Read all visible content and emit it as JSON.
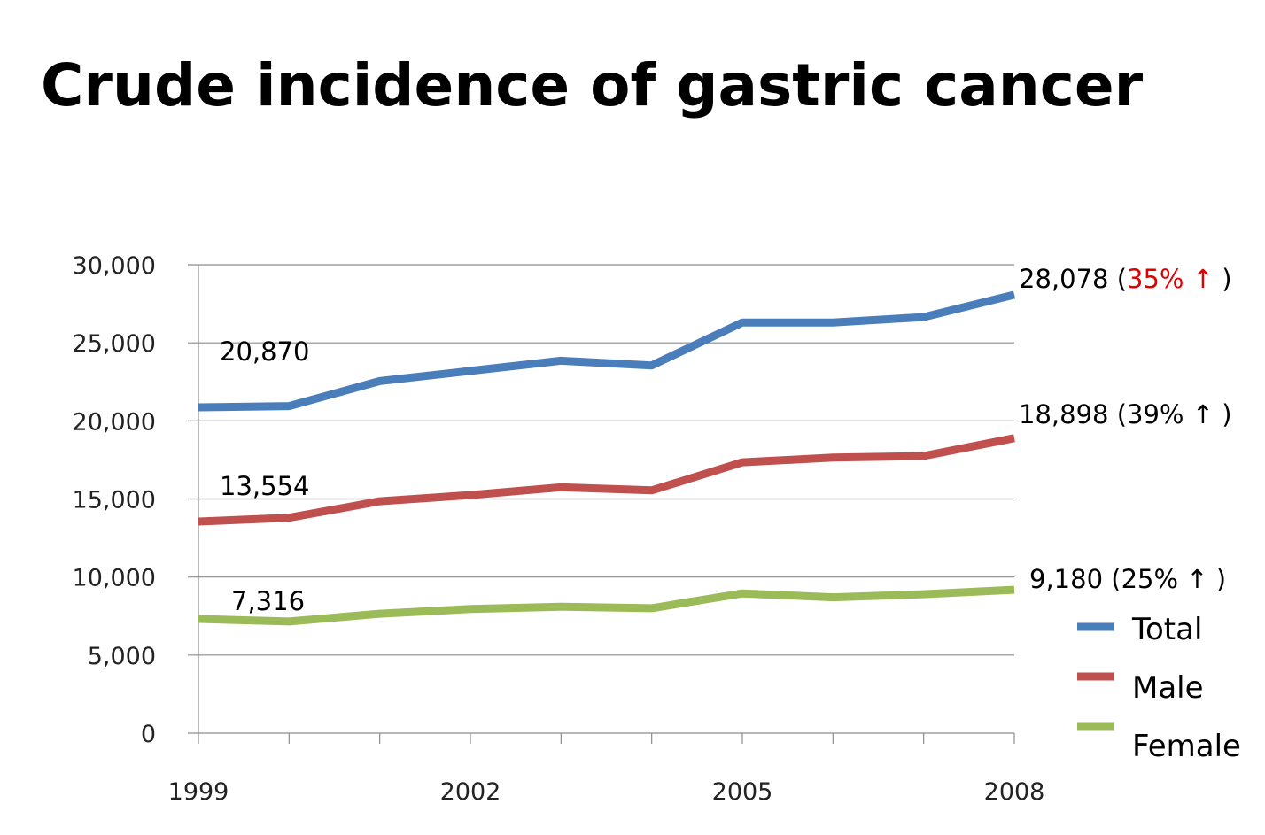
{
  "title": "Crude incidence of gastric cancer",
  "chart_data": {
    "type": "line",
    "x": [
      1999,
      2000,
      2001,
      2002,
      2003,
      2004,
      2005,
      2006,
      2007,
      2008
    ],
    "x_tick_labels": [
      "1999",
      "2002",
      "2005",
      "2008"
    ],
    "x_tick_values": [
      1999,
      2002,
      2005,
      2008
    ],
    "y_tick_labels": [
      "0",
      "5,000",
      "10,000",
      "15,000",
      "20,000",
      "25,000",
      "30,000"
    ],
    "y_tick_values": [
      0,
      5000,
      10000,
      15000,
      20000,
      25000,
      30000
    ],
    "ylim": [
      0,
      30000
    ],
    "grid": true,
    "legend_position": "right",
    "series": [
      {
        "name": "Total",
        "color": "#4a7ebb",
        "values": [
          20870,
          20950,
          22550,
          23200,
          23850,
          23550,
          26300,
          26300,
          26650,
          28078
        ],
        "start_label": "20,870",
        "end_label": {
          "value": "28,078",
          "open": " (",
          "pct": "35%",
          "arrow": "↑",
          "close": ")"
        },
        "end_highlight_color": "#e00000"
      },
      {
        "name": "Male",
        "color": "#c0504d",
        "values": [
          13554,
          13800,
          14850,
          15250,
          15750,
          15550,
          17350,
          17650,
          17750,
          18898
        ],
        "start_label": "13,554",
        "end_label": {
          "value": "18,898",
          "open": " (",
          "pct": "39%",
          "arrow": "↑",
          "close": ")"
        }
      },
      {
        "name": "Female",
        "color": "#9bbb59",
        "values": [
          7316,
          7150,
          7650,
          7950,
          8100,
          8000,
          8950,
          8700,
          8900,
          9180
        ],
        "start_label": "7,316",
        "end_label": {
          "value": "9,180",
          "open": " (",
          "pct": "25%",
          "arrow": "↑",
          "close": ")"
        }
      }
    ]
  }
}
